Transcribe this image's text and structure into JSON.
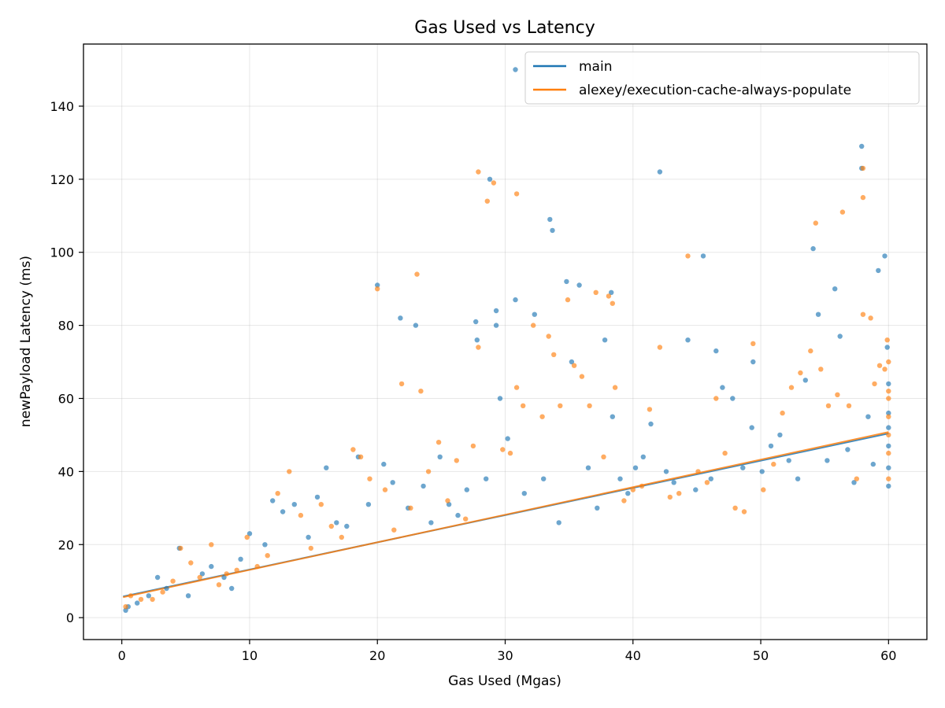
{
  "chart_data": {
    "type": "scatter",
    "title": "Gas Used vs Latency",
    "xlabel": "Gas Used (Mgas)",
    "ylabel": "newPayload Latency (ms)",
    "xlim": [
      -3,
      63
    ],
    "ylim": [
      -6,
      157
    ],
    "xticks": [
      0,
      10,
      20,
      30,
      40,
      50,
      60
    ],
    "yticks": [
      0,
      20,
      40,
      60,
      80,
      100,
      120,
      140
    ],
    "grid": true,
    "legend": "top-right",
    "series": [
      {
        "name": "main",
        "color": "#1f77b4",
        "trendline": {
          "x": [
            0.1,
            60
          ],
          "y": [
            5.8,
            50.4
          ]
        },
        "points": [
          [
            0.3,
            2
          ],
          [
            0.5,
            3
          ],
          [
            1.2,
            4
          ],
          [
            2.1,
            6
          ],
          [
            2.8,
            11
          ],
          [
            3.5,
            8
          ],
          [
            4.5,
            19
          ],
          [
            5.2,
            6
          ],
          [
            6.3,
            12
          ],
          [
            7,
            14
          ],
          [
            8,
            11
          ],
          [
            8.6,
            8
          ],
          [
            9.3,
            16
          ],
          [
            10,
            23
          ],
          [
            11.2,
            20
          ],
          [
            11.8,
            32
          ],
          [
            12.6,
            29
          ],
          [
            13.5,
            31
          ],
          [
            14.6,
            22
          ],
          [
            15.3,
            33
          ],
          [
            16,
            41
          ],
          [
            16.8,
            26
          ],
          [
            17.6,
            25
          ],
          [
            18.5,
            44
          ],
          [
            19.3,
            31
          ],
          [
            20,
            91
          ],
          [
            20.5,
            42
          ],
          [
            21.2,
            37
          ],
          [
            21.8,
            82
          ],
          [
            22.4,
            30
          ],
          [
            23,
            80
          ],
          [
            23.6,
            36
          ],
          [
            24.2,
            26
          ],
          [
            24.9,
            44
          ],
          [
            25.6,
            31
          ],
          [
            26.3,
            28
          ],
          [
            27,
            35
          ],
          [
            27.7,
            81
          ],
          [
            27.8,
            76
          ],
          [
            28.5,
            38
          ],
          [
            28.8,
            120
          ],
          [
            29.3,
            80
          ],
          [
            29.3,
            84
          ],
          [
            29.6,
            60
          ],
          [
            30.2,
            49
          ],
          [
            30.8,
            87
          ],
          [
            30.8,
            150
          ],
          [
            31.5,
            34
          ],
          [
            32.3,
            83
          ],
          [
            33,
            38
          ],
          [
            33.5,
            109
          ],
          [
            33.7,
            106
          ],
          [
            34.2,
            26
          ],
          [
            34.8,
            92
          ],
          [
            35.2,
            70
          ],
          [
            35.8,
            91
          ],
          [
            36.5,
            41
          ],
          [
            37.2,
            30
          ],
          [
            37.8,
            76
          ],
          [
            38.3,
            89
          ],
          [
            38.4,
            55
          ],
          [
            39,
            38
          ],
          [
            39.6,
            34
          ],
          [
            40.2,
            41
          ],
          [
            40.8,
            44
          ],
          [
            41.4,
            53
          ],
          [
            42.1,
            122
          ],
          [
            42.6,
            40
          ],
          [
            43.2,
            37
          ],
          [
            44.3,
            76
          ],
          [
            44.9,
            35
          ],
          [
            45.5,
            99
          ],
          [
            46.1,
            38
          ],
          [
            46.5,
            73
          ],
          [
            47,
            63
          ],
          [
            47.8,
            60
          ],
          [
            48.6,
            41
          ],
          [
            49.3,
            52
          ],
          [
            49.4,
            70
          ],
          [
            50.1,
            40
          ],
          [
            50.8,
            47
          ],
          [
            51.5,
            50
          ],
          [
            52.2,
            43
          ],
          [
            52.9,
            38
          ],
          [
            53.5,
            65
          ],
          [
            54.1,
            101
          ],
          [
            54.5,
            83
          ],
          [
            55.2,
            43
          ],
          [
            55.8,
            90
          ],
          [
            56.2,
            77
          ],
          [
            56.8,
            46
          ],
          [
            57.3,
            37
          ],
          [
            57.9,
            129
          ],
          [
            57.9,
            123
          ],
          [
            58.4,
            55
          ],
          [
            58.8,
            42
          ],
          [
            59.2,
            95
          ],
          [
            59.7,
            99
          ],
          [
            59.9,
            74
          ],
          [
            60,
            47
          ],
          [
            60,
            56
          ],
          [
            60,
            64
          ],
          [
            60,
            36
          ],
          [
            60,
            41
          ],
          [
            60,
            52
          ]
        ]
      },
      {
        "name": "alexey/execution-cache-always-populate",
        "color": "#ff7f0e",
        "trendline": {
          "x": [
            0.1,
            60
          ],
          "y": [
            5.6,
            50.8
          ]
        },
        "points": [
          [
            0.3,
            3
          ],
          [
            0.7,
            6
          ],
          [
            1.5,
            5
          ],
          [
            2.4,
            5
          ],
          [
            3.2,
            7
          ],
          [
            4,
            10
          ],
          [
            4.6,
            19
          ],
          [
            5.4,
            15
          ],
          [
            6.1,
            11
          ],
          [
            7,
            20
          ],
          [
            7.6,
            9
          ],
          [
            8.2,
            12
          ],
          [
            9,
            13
          ],
          [
            9.8,
            22
          ],
          [
            10.6,
            14
          ],
          [
            11.4,
            17
          ],
          [
            12.2,
            34
          ],
          [
            13.1,
            40
          ],
          [
            14,
            28
          ],
          [
            14.8,
            19
          ],
          [
            15.6,
            31
          ],
          [
            16.4,
            25
          ],
          [
            17.2,
            22
          ],
          [
            18.1,
            46
          ],
          [
            18.7,
            44
          ],
          [
            19.4,
            38
          ],
          [
            20,
            90
          ],
          [
            20.6,
            35
          ],
          [
            21.3,
            24
          ],
          [
            21.9,
            64
          ],
          [
            22.6,
            30
          ],
          [
            23.1,
            94
          ],
          [
            23.4,
            62
          ],
          [
            24,
            40
          ],
          [
            24.8,
            48
          ],
          [
            25.5,
            32
          ],
          [
            26.2,
            43
          ],
          [
            26.9,
            27
          ],
          [
            27.5,
            47
          ],
          [
            27.9,
            122
          ],
          [
            27.9,
            74
          ],
          [
            28.6,
            114
          ],
          [
            29.1,
            119
          ],
          [
            29.8,
            46
          ],
          [
            30.4,
            45
          ],
          [
            30.9,
            116
          ],
          [
            30.9,
            63
          ],
          [
            31.4,
            58
          ],
          [
            32.2,
            80
          ],
          [
            32.9,
            55
          ],
          [
            33.4,
            77
          ],
          [
            33.8,
            72
          ],
          [
            34.3,
            58
          ],
          [
            34.9,
            87
          ],
          [
            35.4,
            69
          ],
          [
            36,
            66
          ],
          [
            36.6,
            58
          ],
          [
            37.1,
            89
          ],
          [
            37.7,
            44
          ],
          [
            38.1,
            88
          ],
          [
            38.4,
            86
          ],
          [
            38.6,
            63
          ],
          [
            39.3,
            32
          ],
          [
            40,
            35
          ],
          [
            40.7,
            36
          ],
          [
            41.3,
            57
          ],
          [
            42.1,
            74
          ],
          [
            42.9,
            33
          ],
          [
            43.6,
            34
          ],
          [
            44.3,
            99
          ],
          [
            45.1,
            40
          ],
          [
            45.8,
            37
          ],
          [
            46.5,
            60
          ],
          [
            47.2,
            45
          ],
          [
            48,
            30
          ],
          [
            48.7,
            29
          ],
          [
            49.4,
            75
          ],
          [
            50.2,
            35
          ],
          [
            51,
            42
          ],
          [
            51.7,
            56
          ],
          [
            52.4,
            63
          ],
          [
            53.1,
            67
          ],
          [
            53.9,
            73
          ],
          [
            54.3,
            108
          ],
          [
            54.7,
            68
          ],
          [
            55.3,
            58
          ],
          [
            56,
            61
          ],
          [
            56.4,
            111
          ],
          [
            56.9,
            58
          ],
          [
            57.5,
            38
          ],
          [
            58,
            123
          ],
          [
            58,
            115
          ],
          [
            58,
            83
          ],
          [
            58.6,
            82
          ],
          [
            58.9,
            64
          ],
          [
            59.3,
            69
          ],
          [
            59.7,
            68
          ],
          [
            59.9,
            76
          ],
          [
            60,
            55
          ],
          [
            60,
            60
          ],
          [
            60,
            45
          ],
          [
            60,
            38
          ],
          [
            60,
            70
          ],
          [
            60,
            50
          ],
          [
            60,
            62
          ]
        ]
      }
    ]
  }
}
